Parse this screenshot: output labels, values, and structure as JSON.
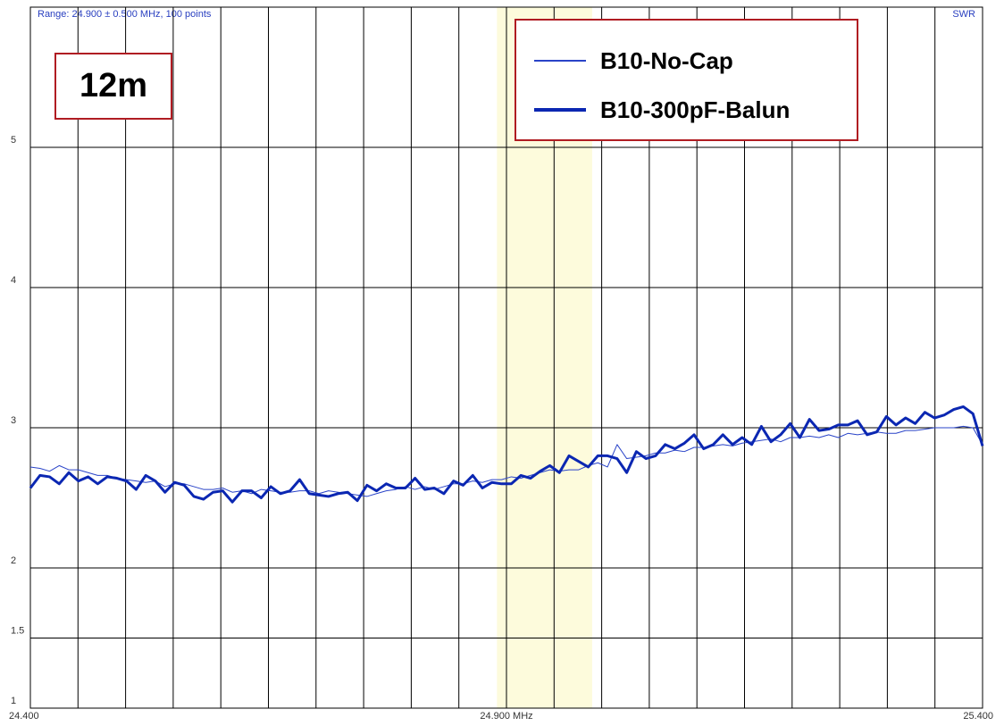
{
  "chart_data": {
    "type": "line",
    "header_left": "Range: 24.900 ± 0.500 MHz, 100 points",
    "header_right": "SWR",
    "annotation": "12m",
    "highlight": [
      24.89,
      24.99
    ],
    "highlight_color": "#fdfbdc",
    "legend": "top-right",
    "grid": true,
    "xlim": [
      24.4,
      25.4
    ],
    "xticks": [
      {
        "value": 24.4,
        "label": "24.400"
      },
      {
        "value": 24.9,
        "label": "24.900 MHz"
      },
      {
        "value": 25.4,
        "label": "25.400"
      }
    ],
    "xgrid": [
      24.4,
      24.45,
      24.5,
      24.55,
      24.6,
      24.65,
      24.7,
      24.75,
      24.8,
      24.85,
      24.9,
      24.95,
      25.0,
      25.05,
      25.1,
      25.15,
      25.2,
      25.25,
      25.3,
      25.35,
      25.4
    ],
    "ylim": [
      1,
      6
    ],
    "yticks": [
      1,
      1.5,
      2,
      3,
      4,
      5
    ],
    "x": [
      24.4,
      24.4101,
      24.4202,
      24.4303,
      24.4404,
      24.4505,
      24.4606,
      24.4707,
      24.4808,
      24.4909,
      24.501,
      24.5111,
      24.5212,
      24.5313,
      24.5414,
      24.5515,
      24.5616,
      24.5717,
      24.5818,
      24.5919,
      24.602,
      24.6121,
      24.6222,
      24.6323,
      24.6424,
      24.6525,
      24.6626,
      24.6727,
      24.6828,
      24.6929,
      24.703,
      24.7131,
      24.7232,
      24.7333,
      24.7434,
      24.7535,
      24.7636,
      24.7737,
      24.7838,
      24.7939,
      24.804,
      24.8141,
      24.8242,
      24.8343,
      24.8444,
      24.8545,
      24.8646,
      24.8747,
      24.8848,
      24.8949,
      24.9051,
      24.9152,
      24.9253,
      24.9354,
      24.9455,
      24.9556,
      24.9657,
      24.9758,
      24.9859,
      24.996,
      25.0061,
      25.0162,
      25.0263,
      25.0364,
      25.0465,
      25.0566,
      25.0667,
      25.0768,
      25.0869,
      25.097,
      25.1071,
      25.1172,
      25.1273,
      25.1374,
      25.1475,
      25.1576,
      25.1677,
      25.1778,
      25.1879,
      25.198,
      25.2081,
      25.2182,
      25.2283,
      25.2384,
      25.2485,
      25.2586,
      25.2687,
      25.2788,
      25.2889,
      25.299,
      25.3091,
      25.3192,
      25.3293,
      25.3394,
      25.3495,
      25.3596,
      25.3697,
      25.3798,
      25.3899,
      25.4
    ],
    "series": [
      {
        "name": "B10-No-Cap",
        "color": "#2a44c8",
        "line_width": 1,
        "values": [
          2.72,
          2.71,
          2.69,
          2.73,
          2.7,
          2.7,
          2.68,
          2.66,
          2.66,
          2.64,
          2.63,
          2.62,
          2.61,
          2.62,
          2.58,
          2.6,
          2.6,
          2.58,
          2.56,
          2.56,
          2.57,
          2.54,
          2.55,
          2.53,
          2.56,
          2.55,
          2.54,
          2.54,
          2.55,
          2.55,
          2.53,
          2.55,
          2.54,
          2.53,
          2.52,
          2.51,
          2.53,
          2.55,
          2.56,
          2.58,
          2.56,
          2.58,
          2.56,
          2.58,
          2.6,
          2.6,
          2.62,
          2.61,
          2.63,
          2.63,
          2.65,
          2.64,
          2.66,
          2.68,
          2.7,
          2.69,
          2.7,
          2.7,
          2.73,
          2.75,
          2.72,
          2.88,
          2.78,
          2.79,
          2.8,
          2.82,
          2.82,
          2.84,
          2.83,
          2.86,
          2.86,
          2.87,
          2.88,
          2.87,
          2.89,
          2.9,
          2.91,
          2.92,
          2.9,
          2.93,
          2.93,
          2.94,
          2.93,
          2.95,
          2.93,
          2.96,
          2.95,
          2.96,
          2.97,
          2.96,
          2.96,
          2.98,
          2.98,
          2.99,
          3.0,
          3.0,
          3.0,
          3.01,
          3.0,
          2.88
        ]
      },
      {
        "name": "B10-300pF-Balun",
        "color": "#0b27b2",
        "line_width": 3,
        "values": [
          2.57,
          2.66,
          2.65,
          2.6,
          2.68,
          2.62,
          2.65,
          2.6,
          2.65,
          2.64,
          2.62,
          2.56,
          2.66,
          2.62,
          2.54,
          2.61,
          2.59,
          2.51,
          2.49,
          2.54,
          2.55,
          2.47,
          2.55,
          2.55,
          2.5,
          2.58,
          2.53,
          2.55,
          2.63,
          2.53,
          2.52,
          2.51,
          2.53,
          2.54,
          2.48,
          2.59,
          2.55,
          2.6,
          2.57,
          2.57,
          2.64,
          2.56,
          2.57,
          2.53,
          2.62,
          2.59,
          2.66,
          2.57,
          2.61,
          2.6,
          2.6,
          2.66,
          2.64,
          2.69,
          2.73,
          2.68,
          2.8,
          2.76,
          2.72,
          2.8,
          2.8,
          2.78,
          2.68,
          2.83,
          2.78,
          2.8,
          2.88,
          2.85,
          2.89,
          2.95,
          2.85,
          2.88,
          2.95,
          2.88,
          2.93,
          2.88,
          3.01,
          2.9,
          2.95,
          3.03,
          2.93,
          3.06,
          2.98,
          2.99,
          3.02,
          3.02,
          3.05,
          2.95,
          2.97,
          3.08,
          3.02,
          3.07,
          3.03,
          3.11,
          3.07,
          3.09,
          3.13,
          3.15,
          3.1,
          2.87
        ]
      }
    ]
  }
}
